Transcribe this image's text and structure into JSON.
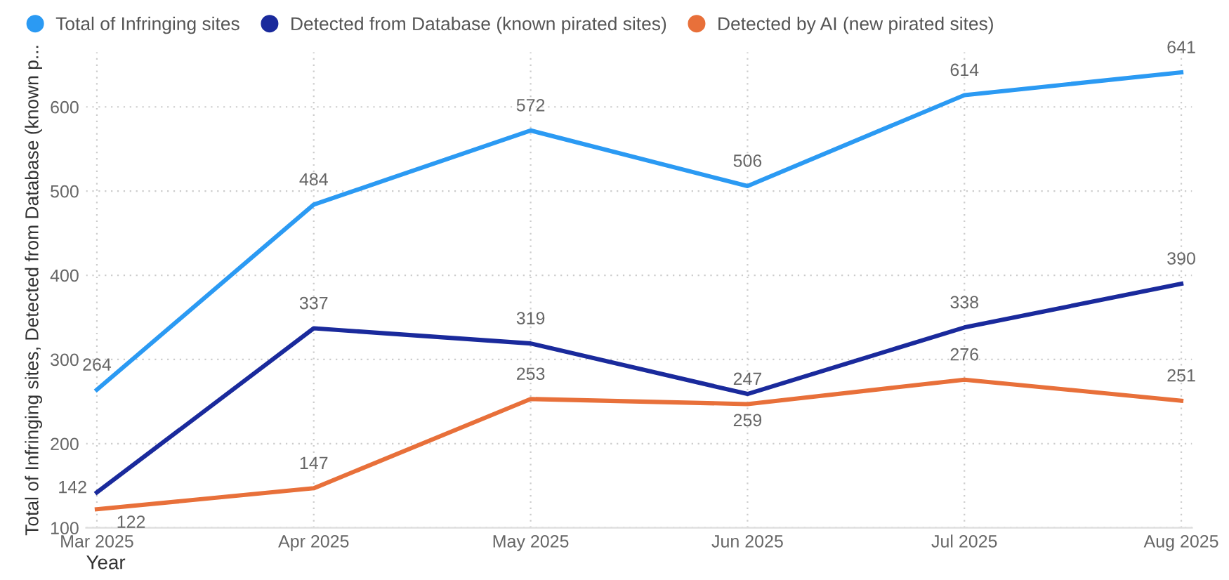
{
  "chart_data": {
    "type": "line",
    "xlabel": "Year",
    "ylabel": "Total of Infringing sites, Detected from Database (known p...",
    "categories": [
      "Mar 2025",
      "Apr 2025",
      "May 2025",
      "Jun 2025",
      "Jul 2025",
      "Aug 2025"
    ],
    "series": [
      {
        "name": "Total of Infringing sites",
        "color": "#2b9af3",
        "values": [
          264,
          484,
          572,
          506,
          614,
          641
        ]
      },
      {
        "name": "Detected from Database (known pirated sites)",
        "color": "#1a2a9c",
        "values": [
          142,
          337,
          319,
          259,
          338,
          390
        ]
      },
      {
        "name": "Detected by AI (new pirated sites)",
        "color": "#e8703a",
        "values": [
          122,
          147,
          253,
          247,
          276,
          251
        ]
      }
    ],
    "ylim": [
      100,
      665
    ],
    "yticks": [
      100,
      200,
      300,
      400,
      500,
      600
    ],
    "grid": true,
    "legend": "top left",
    "data_labels": true,
    "marker": "none",
    "line_style": "solid"
  }
}
